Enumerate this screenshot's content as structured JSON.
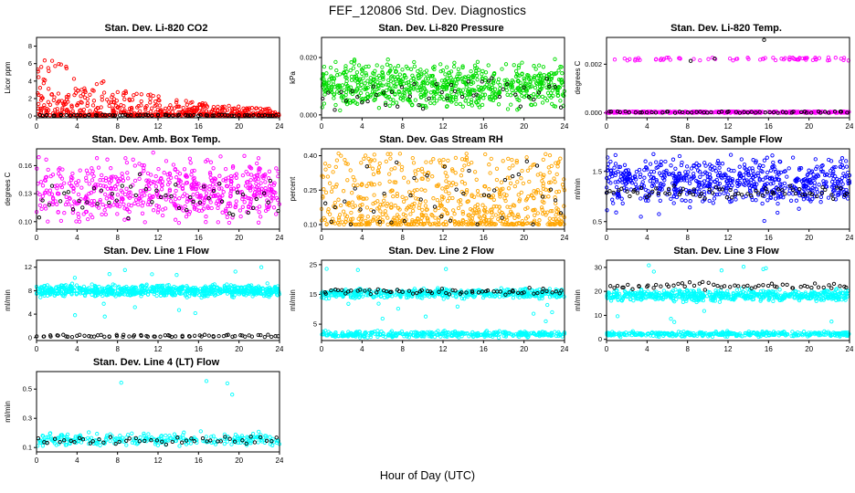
{
  "page": {
    "title": "FEF_120806  Std. Dev. Diagnostics",
    "xlabel": "Hour of Day (UTC)"
  },
  "chart_data": [
    {
      "type": "scatter",
      "title": "Stan. Dev. Li-820 CO2",
      "ylabel": "Licor ppm",
      "xlim": [
        0,
        24
      ],
      "ylim": [
        -0.2,
        9
      ],
      "xticks": [
        0,
        4,
        8,
        12,
        16,
        20,
        24
      ],
      "xtick_labels": [
        "0",
        "4",
        "8",
        "12",
        "16",
        "20",
        "24"
      ],
      "yticks": [
        0,
        2,
        4,
        6,
        8
      ],
      "ytick_labels": [
        "0",
        "2",
        "4",
        "6",
        "8"
      ],
      "grid": false,
      "legend": "none",
      "series": [
        {
          "name": "li820-co2-sd",
          "color": "#FF0000",
          "marker": "open-circle",
          "pattern": "decay",
          "n": 620,
          "floor": 0.08,
          "amp": 7.6,
          "tau": 10,
          "pow": 3.2
        },
        {
          "name": "reference",
          "color": "#000000",
          "marker": "open-circle",
          "pattern": "band",
          "n": 70,
          "xeven": true,
          "y": [
            0.02,
            0.15
          ]
        }
      ]
    },
    {
      "type": "scatter",
      "title": "Stan. Dev. Li-820 Pressure",
      "ylabel": "kPa",
      "xlim": [
        0,
        24
      ],
      "ylim": [
        -0.001,
        0.027
      ],
      "xticks": [
        0,
        4,
        8,
        12,
        16,
        20,
        24
      ],
      "xtick_labels": [
        "0",
        "4",
        "8",
        "12",
        "16",
        "20",
        "24"
      ],
      "yticks": [
        0,
        0.02
      ],
      "ytick_labels": [
        "0.000",
        "0.020"
      ],
      "grid": false,
      "legend": "none",
      "series": [
        {
          "name": "li820-pressure-sd",
          "color": "#00DD00",
          "marker": "open-circle",
          "pattern": "gauss",
          "n": 760,
          "mean": 0.01,
          "sd": 0.0038,
          "clip": [
            0.0015,
            0.024
          ]
        },
        {
          "name": "reference",
          "color": "#000000",
          "marker": "open-circle",
          "pattern": "gauss",
          "n": 46,
          "xeven": true,
          "mean": 0.008,
          "sd": 0.003,
          "clip": [
            0.001,
            0.016
          ]
        }
      ]
    },
    {
      "type": "scatter",
      "title": "Stan. Dev. Li-820 Temp.",
      "ylabel": "degrees C",
      "xlim": [
        0,
        24
      ],
      "ylim": [
        -0.0002,
        0.0031
      ],
      "xticks": [
        0,
        4,
        8,
        12,
        16,
        20,
        24
      ],
      "xtick_labels": [
        "0",
        "4",
        "8",
        "12",
        "16",
        "20",
        "24"
      ],
      "yticks": [
        0,
        0.002
      ],
      "ytick_labels": [
        "0.000",
        "0.002"
      ],
      "grid": false,
      "legend": "none",
      "series": [
        {
          "name": "li820-temp-sd-zero",
          "color": "#FF00FF",
          "marker": "open-circle",
          "pattern": "band",
          "n": 360,
          "y": [
            0.0,
            6e-05
          ]
        },
        {
          "name": "li820-temp-sd-high",
          "color": "#FF00FF",
          "marker": "open-circle",
          "pattern": "band",
          "n": 72,
          "y": [
            0.00215,
            0.00228
          ]
        },
        {
          "name": "reference-zero",
          "color": "#000000",
          "marker": "open-circle",
          "pattern": "band",
          "n": 56,
          "xeven": true,
          "y": [
            0.0,
            6e-05
          ]
        },
        {
          "name": "reference-high",
          "color": "#000000",
          "marker": "open-circle",
          "pattern": "outliers",
          "n": 2,
          "y": [
            0.0021,
            0.0023
          ]
        },
        {
          "name": "reference-top",
          "color": "#000000",
          "marker": "open-circle",
          "pattern": "outliers",
          "n": 1,
          "y": [
            0.00295,
            0.00305
          ]
        }
      ]
    },
    {
      "type": "scatter",
      "title": "Stan. Dev. Amb. Box Temp.",
      "ylabel": "degrees C",
      "xlim": [
        0,
        24
      ],
      "ylim": [
        0.092,
        0.178
      ],
      "xticks": [
        0,
        4,
        8,
        12,
        16,
        20,
        24
      ],
      "xtick_labels": [
        "0",
        "4",
        "8",
        "12",
        "16",
        "20",
        "24"
      ],
      "yticks": [
        0.1,
        0.13,
        0.16
      ],
      "ytick_labels": [
        "0.10",
        "0.13",
        "0.16"
      ],
      "grid": false,
      "legend": "none",
      "series": [
        {
          "name": "amb-box-temp-sd",
          "color": "#FF00FF",
          "marker": "open-circle",
          "pattern": "gauss",
          "n": 620,
          "mean": 0.132,
          "sd": 0.016,
          "clip": [
            0.096,
            0.174
          ]
        },
        {
          "name": "reference",
          "color": "#000000",
          "marker": "open-circle",
          "pattern": "gauss",
          "n": 50,
          "xeven": true,
          "mean": 0.128,
          "sd": 0.01,
          "clip": [
            0.1,
            0.155
          ]
        }
      ]
    },
    {
      "type": "scatter",
      "title": "Stan. Dev. Gas Stream RH",
      "ylabel": "percent",
      "xlim": [
        0,
        24
      ],
      "ylim": [
        0.08,
        0.43
      ],
      "xticks": [
        0,
        4,
        8,
        12,
        16,
        20,
        24
      ],
      "xtick_labels": [
        "0",
        "4",
        "8",
        "12",
        "16",
        "20",
        "24"
      ],
      "yticks": [
        0.1,
        0.25,
        0.4
      ],
      "ytick_labels": [
        "0.10",
        "0.25",
        "0.40"
      ],
      "grid": false,
      "legend": "none",
      "series": [
        {
          "name": "gas-stream-rh-sd",
          "color": "#FFA500",
          "marker": "open-circle",
          "pattern": "power",
          "n": 700,
          "y": [
            0.1,
            0.41
          ],
          "pow": 2.2
        },
        {
          "name": "reference",
          "color": "#000000",
          "marker": "open-circle",
          "pattern": "power",
          "n": 40,
          "xeven": true,
          "y": [
            0.1,
            0.38
          ],
          "pow": 1.8
        }
      ]
    },
    {
      "type": "scatter",
      "title": "Stan. Dev. Sample Flow",
      "ylabel": "ml/min",
      "xlim": [
        0,
        24
      ],
      "ylim": [
        0.35,
        1.95
      ],
      "xticks": [
        0,
        4,
        8,
        12,
        16,
        20,
        24
      ],
      "xtick_labels": [
        "0",
        "4",
        "8",
        "12",
        "16",
        "20",
        "24"
      ],
      "yticks": [
        0.5,
        1.5
      ],
      "ytick_labels": [
        "0.5",
        "1.5"
      ],
      "grid": false,
      "legend": "none",
      "series": [
        {
          "name": "sample-flow-sd",
          "color": "#0000FF",
          "marker": "open-circle",
          "pattern": "gauss",
          "n": 660,
          "mean": 1.3,
          "sd": 0.22,
          "clip": [
            0.85,
            1.85
          ]
        },
        {
          "name": "sample-flow-low",
          "color": "#0000FF",
          "marker": "open-circle",
          "pattern": "outliers",
          "n": 8,
          "y": [
            0.5,
            0.8
          ]
        },
        {
          "name": "reference",
          "color": "#000000",
          "marker": "open-circle",
          "pattern": "gauss",
          "n": 70,
          "xeven": true,
          "mean": 1.07,
          "sd": 0.06,
          "clip": [
            0.9,
            1.25
          ]
        }
      ]
    },
    {
      "type": "scatter",
      "title": "Stan. Dev. Line 1 Flow",
      "ylabel": "ml/min",
      "xlim": [
        0,
        24
      ],
      "ylim": [
        -0.5,
        13.2
      ],
      "xticks": [
        0,
        4,
        8,
        12,
        16,
        20,
        24
      ],
      "xtick_labels": [
        "0",
        "4",
        "8",
        "12",
        "16",
        "20",
        "24"
      ],
      "yticks": [
        0,
        4,
        8,
        12
      ],
      "ytick_labels": [
        "0",
        "4",
        "8",
        "12"
      ],
      "grid": false,
      "legend": "none",
      "series": [
        {
          "name": "line1-flow-sd",
          "color": "#00FFFF",
          "marker": "open-circle",
          "pattern": "gauss",
          "n": 760,
          "mean": 8.0,
          "sd": 0.45,
          "clip": [
            6.2,
            9.6
          ]
        },
        {
          "name": "line1-high",
          "color": "#00FFFF",
          "marker": "open-circle",
          "pattern": "outliers",
          "n": 7,
          "y": [
            9.8,
            12.3
          ]
        },
        {
          "name": "line1-low",
          "color": "#00FFFF",
          "marker": "open-circle",
          "pattern": "outliers",
          "n": 6,
          "y": [
            3.5,
            6.0
          ]
        },
        {
          "name": "reference",
          "color": "#000000",
          "marker": "open-circle",
          "pattern": "band",
          "n": 70,
          "xeven": true,
          "y": [
            0.1,
            0.5
          ]
        }
      ]
    },
    {
      "type": "scatter",
      "title": "Stan. Dev. Line 2 Flow",
      "ylabel": "ml/min",
      "xlim": [
        0,
        24
      ],
      "ylim": [
        -0.5,
        26.5
      ],
      "xticks": [
        0,
        4,
        8,
        12,
        16,
        20,
        24
      ],
      "xtick_labels": [
        "0",
        "4",
        "8",
        "12",
        "16",
        "20",
        "24"
      ],
      "yticks": [
        5,
        15,
        25
      ],
      "ytick_labels": [
        "5",
        "15",
        "25"
      ],
      "grid": false,
      "legend": "none",
      "series": [
        {
          "name": "line2-flow-sd",
          "color": "#00FFFF",
          "marker": "open-circle",
          "pattern": "gauss",
          "n": 500,
          "mean": 15.3,
          "sd": 0.7,
          "clip": [
            13.0,
            17.5
          ]
        },
        {
          "name": "line2-low-band",
          "color": "#00FFFF",
          "marker": "open-circle",
          "pattern": "gauss",
          "n": 390,
          "mean": 1.6,
          "sd": 0.5,
          "clip": [
            0.4,
            3.0
          ]
        },
        {
          "name": "line2-mid-outliers",
          "color": "#00FFFF",
          "marker": "open-circle",
          "pattern": "outliers",
          "n": 10,
          "y": [
            4.5,
            12.5
          ]
        },
        {
          "name": "line2-high-outliers",
          "color": "#00FFFF",
          "marker": "open-circle",
          "pattern": "outliers",
          "n": 3,
          "y": [
            23.0,
            25.5
          ]
        },
        {
          "name": "reference",
          "color": "#000000",
          "marker": "open-circle",
          "pattern": "gauss",
          "n": 66,
          "xeven": true,
          "mean": 15.9,
          "sd": 0.5,
          "clip": [
            14.5,
            17.3
          ]
        }
      ]
    },
    {
      "type": "scatter",
      "title": "Stan. Dev. Line 3 Flow",
      "ylabel": "ml/min",
      "xlim": [
        0,
        24
      ],
      "ylim": [
        -0.5,
        33
      ],
      "xticks": [
        0,
        4,
        8,
        12,
        16,
        20,
        24
      ],
      "xtick_labels": [
        "0",
        "4",
        "8",
        "12",
        "16",
        "20",
        "24"
      ],
      "yticks": [
        0,
        10,
        20,
        30
      ],
      "ytick_labels": [
        "0",
        "10",
        "20",
        "30"
      ],
      "grid": false,
      "legend": "none",
      "series": [
        {
          "name": "line3-flow-sd",
          "color": "#00FFFF",
          "marker": "open-circle",
          "pattern": "gauss",
          "n": 600,
          "mean": 18.3,
          "sd": 1.1,
          "clip": [
            15.0,
            21.5
          ]
        },
        {
          "name": "line3-low-band",
          "color": "#00FFFF",
          "marker": "open-circle",
          "pattern": "gauss",
          "n": 390,
          "mean": 2.2,
          "sd": 0.5,
          "clip": [
            0.8,
            3.8
          ]
        },
        {
          "name": "line3-high-outliers",
          "color": "#00FFFF",
          "marker": "open-circle",
          "pattern": "outliers",
          "n": 6,
          "y": [
            26.0,
            31.0
          ]
        },
        {
          "name": "line3-mid-outliers",
          "color": "#00FFFF",
          "marker": "open-circle",
          "pattern": "outliers",
          "n": 5,
          "y": [
            6.0,
            13.0
          ]
        },
        {
          "name": "reference",
          "color": "#000000",
          "marker": "open-circle",
          "pattern": "gauss",
          "n": 60,
          "xeven": true,
          "mean": 22.3,
          "sd": 0.7,
          "clip": [
            20.5,
            24.0
          ]
        }
      ]
    },
    {
      "type": "scatter",
      "title": "Stan. Dev. Line 4 (LT) Flow",
      "ylabel": "ml/min",
      "xlim": [
        0,
        24
      ],
      "ylim": [
        0.07,
        0.62
      ],
      "xticks": [
        0,
        4,
        8,
        12,
        16,
        20,
        24
      ],
      "xtick_labels": [
        "0",
        "4",
        "8",
        "12",
        "16",
        "20",
        "24"
      ],
      "yticks": [
        0.1,
        0.3,
        0.5
      ],
      "ytick_labels": [
        "0.1",
        "0.3",
        "0.5"
      ],
      "grid": false,
      "legend": "none",
      "series": [
        {
          "name": "line4-flow-sd",
          "color": "#00FFFF",
          "marker": "open-circle",
          "pattern": "gauss",
          "n": 270,
          "mean": 0.155,
          "sd": 0.022,
          "clip": [
            0.11,
            0.23
          ]
        },
        {
          "name": "line4-outliers",
          "color": "#00FFFF",
          "marker": "open-circle",
          "pattern": "outliers",
          "n": 4,
          "y": [
            0.3,
            0.58
          ]
        },
        {
          "name": "reference",
          "color": "#000000",
          "marker": "open-circle",
          "pattern": "gauss",
          "n": 48,
          "xeven": true,
          "mean": 0.15,
          "sd": 0.015,
          "clip": [
            0.12,
            0.2
          ]
        }
      ]
    }
  ]
}
